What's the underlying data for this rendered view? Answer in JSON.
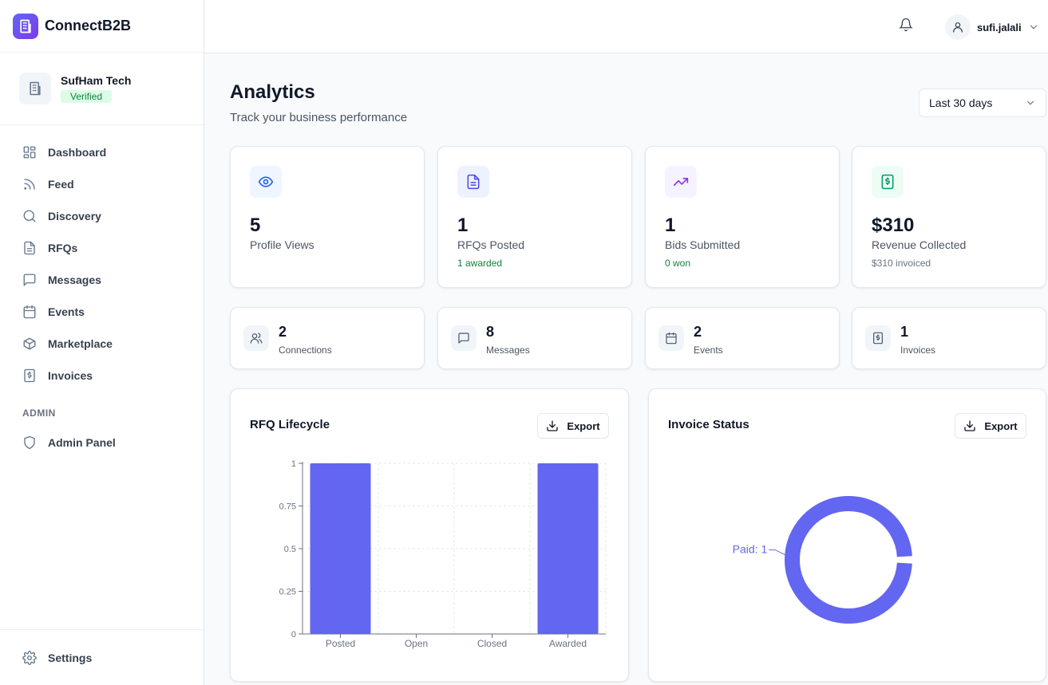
{
  "app": {
    "name": "ConnectB2B"
  },
  "company": {
    "name": "SufHam Tech",
    "badge": "Verified"
  },
  "nav": {
    "items": [
      {
        "label": "Dashboard",
        "icon": "dashboard-icon"
      },
      {
        "label": "Feed",
        "icon": "rss-icon"
      },
      {
        "label": "Discovery",
        "icon": "search-icon"
      },
      {
        "label": "RFQs",
        "icon": "document-icon"
      },
      {
        "label": "Messages",
        "icon": "message-icon"
      },
      {
        "label": "Events",
        "icon": "calendar-icon"
      },
      {
        "label": "Marketplace",
        "icon": "package-icon"
      },
      {
        "label": "Invoices",
        "icon": "invoice-icon"
      }
    ],
    "admin_section": "ADMIN",
    "admin_item": "Admin Panel",
    "settings": "Settings"
  },
  "header": {
    "username": "sufi.jalali"
  },
  "page": {
    "title": "Analytics",
    "subtitle": "Track your business performance",
    "range": "Last 30 days"
  },
  "stats": [
    {
      "value": "5",
      "label": "Profile Views",
      "note": "",
      "icon": "eye-icon"
    },
    {
      "value": "1",
      "label": "RFQs Posted",
      "note": "1 awarded",
      "icon": "document-icon"
    },
    {
      "value": "1",
      "label": "Bids Submitted",
      "note": "0 won",
      "icon": "trending-up-icon"
    },
    {
      "value": "$310",
      "label": "Revenue Collected",
      "note": "$310 invoiced",
      "icon": "dollar-receipt-icon"
    }
  ],
  "mini_stats": [
    {
      "value": "2",
      "label": "Connections",
      "icon": "users-icon"
    },
    {
      "value": "8",
      "label": "Messages",
      "icon": "message-icon"
    },
    {
      "value": "2",
      "label": "Events",
      "icon": "calendar-icon"
    },
    {
      "value": "1",
      "label": "Invoices",
      "icon": "invoice-icon"
    }
  ],
  "export_label": "Export",
  "colors": {
    "accent": "#6366f1",
    "green": "#15803d"
  },
  "chart_data": [
    {
      "type": "bar",
      "title": "RFQ Lifecycle",
      "categories": [
        "Posted",
        "Open",
        "Closed",
        "Awarded"
      ],
      "values": [
        1,
        0,
        0,
        1
      ],
      "ylim": [
        0,
        1
      ],
      "yticks": [
        "0",
        "0.25",
        "0.5",
        "0.75",
        "1"
      ],
      "grid": true,
      "color": "#6366f1"
    },
    {
      "type": "pie",
      "title": "Invoice Status",
      "slices": [
        {
          "label": "Paid",
          "value": 1
        }
      ],
      "slice_labels": [
        "Paid: 1"
      ],
      "donut": true,
      "color": "#6366f1"
    }
  ]
}
